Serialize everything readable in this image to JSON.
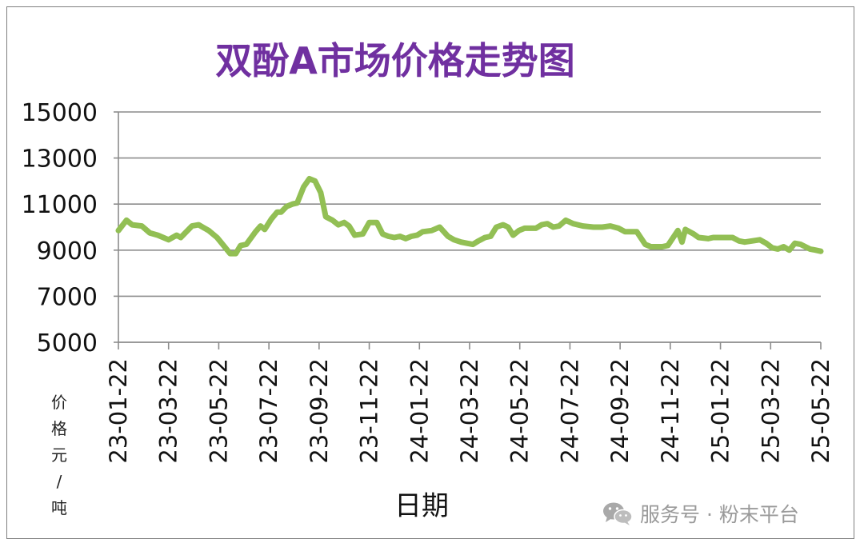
{
  "chart_data": {
    "type": "line",
    "title": "双酚A市场价格走势图",
    "xlabel": "日期",
    "ylabel": "价格元/吨",
    "ylim": [
      5000,
      15000
    ],
    "yticks": [
      5000,
      7000,
      9000,
      11000,
      13000,
      15000
    ],
    "ytick_labels": [
      "5000",
      "7000",
      "9000",
      "11000",
      "13000",
      "15000"
    ],
    "xticks": [
      "23-01-22",
      "23-03-22",
      "23-05-22",
      "23-07-22",
      "23-09-22",
      "23-11-22",
      "24-01-22",
      "24-03-22",
      "24-05-22",
      "24-07-22",
      "24-09-22",
      "24-11-22",
      "25-01-22",
      "25-03-22",
      "25-05-22"
    ],
    "grid": true,
    "legend": "none",
    "series": [
      {
        "color": "#92bf54",
        "points": [
          [
            "2023-01-22",
            9850
          ],
          [
            "2023-02-01",
            10300
          ],
          [
            "2023-02-08",
            10100
          ],
          [
            "2023-02-20",
            10050
          ],
          [
            "2023-03-01",
            9750
          ],
          [
            "2023-03-10",
            9650
          ],
          [
            "2023-03-22",
            9450
          ],
          [
            "2023-04-01",
            9650
          ],
          [
            "2023-04-06",
            9550
          ],
          [
            "2023-04-20",
            10050
          ],
          [
            "2023-04-28",
            10100
          ],
          [
            "2023-05-10",
            9850
          ],
          [
            "2023-05-20",
            9550
          ],
          [
            "2023-05-28",
            9200
          ],
          [
            "2023-06-05",
            8850
          ],
          [
            "2023-06-12",
            8850
          ],
          [
            "2023-06-18",
            9200
          ],
          [
            "2023-06-25",
            9250
          ],
          [
            "2023-07-06",
            9800
          ],
          [
            "2023-07-12",
            10050
          ],
          [
            "2023-07-17",
            9900
          ],
          [
            "2023-07-25",
            10350
          ],
          [
            "2023-08-01",
            10650
          ],
          [
            "2023-08-06",
            10650
          ],
          [
            "2023-08-13",
            10900
          ],
          [
            "2023-08-20",
            11000
          ],
          [
            "2023-08-26",
            11050
          ],
          [
            "2023-09-03",
            11750
          ],
          [
            "2023-09-10",
            12100
          ],
          [
            "2023-09-17",
            12000
          ],
          [
            "2023-09-24",
            11500
          ],
          [
            "2023-09-30",
            10450
          ],
          [
            "2023-10-08",
            10300
          ],
          [
            "2023-10-15",
            10100
          ],
          [
            "2023-10-22",
            10200
          ],
          [
            "2023-10-28",
            10050
          ],
          [
            "2023-11-04",
            9650
          ],
          [
            "2023-11-14",
            9700
          ],
          [
            "2023-11-22",
            10200
          ],
          [
            "2023-12-01",
            10200
          ],
          [
            "2023-12-08",
            9700
          ],
          [
            "2023-12-15",
            9600
          ],
          [
            "2023-12-22",
            9550
          ],
          [
            "2023-12-29",
            9600
          ],
          [
            "2024-01-05",
            9500
          ],
          [
            "2024-01-12",
            9600
          ],
          [
            "2024-01-19",
            9650
          ],
          [
            "2024-01-26",
            9800
          ],
          [
            "2024-02-06",
            9850
          ],
          [
            "2024-02-16",
            10000
          ],
          [
            "2024-02-26",
            9600
          ],
          [
            "2024-03-04",
            9450
          ],
          [
            "2024-03-12",
            9350
          ],
          [
            "2024-03-19",
            9300
          ],
          [
            "2024-03-26",
            9250
          ],
          [
            "2024-04-02",
            9400
          ],
          [
            "2024-04-10",
            9550
          ],
          [
            "2024-04-17",
            9600
          ],
          [
            "2024-04-24",
            10000
          ],
          [
            "2024-05-02",
            10100
          ],
          [
            "2024-05-08",
            10000
          ],
          [
            "2024-05-14",
            9650
          ],
          [
            "2024-05-21",
            9850
          ],
          [
            "2024-05-28",
            9950
          ],
          [
            "2024-06-11",
            9950
          ],
          [
            "2024-06-18",
            10100
          ],
          [
            "2024-06-25",
            10150
          ],
          [
            "2024-07-02",
            10000
          ],
          [
            "2024-07-09",
            10050
          ],
          [
            "2024-07-17",
            10300
          ],
          [
            "2024-07-26",
            10150
          ],
          [
            "2024-08-07",
            10050
          ],
          [
            "2024-08-20",
            10000
          ],
          [
            "2024-08-31",
            10000
          ],
          [
            "2024-09-10",
            10050
          ],
          [
            "2024-09-20",
            9950
          ],
          [
            "2024-09-28",
            9800
          ],
          [
            "2024-10-05",
            9800
          ],
          [
            "2024-10-12",
            9800
          ],
          [
            "2024-10-22",
            9250
          ],
          [
            "2024-10-29",
            9150
          ],
          [
            "2024-11-12",
            9150
          ],
          [
            "2024-11-19",
            9200
          ],
          [
            "2024-12-01",
            9850
          ],
          [
            "2024-12-06",
            9350
          ],
          [
            "2024-12-10",
            9900
          ],
          [
            "2024-12-20",
            9700
          ],
          [
            "2024-12-26",
            9550
          ],
          [
            "2025-01-07",
            9500
          ],
          [
            "2025-01-13",
            9550
          ],
          [
            "2025-01-26",
            9550
          ],
          [
            "2025-02-06",
            9550
          ],
          [
            "2025-02-14",
            9400
          ],
          [
            "2025-02-21",
            9350
          ],
          [
            "2025-03-10",
            9450
          ],
          [
            "2025-03-17",
            9300
          ],
          [
            "2025-03-24",
            9100
          ],
          [
            "2025-03-31",
            9050
          ],
          [
            "2025-04-07",
            9150
          ],
          [
            "2025-04-14",
            9000
          ],
          [
            "2025-04-21",
            9300
          ],
          [
            "2025-04-28",
            9250
          ],
          [
            "2025-05-09",
            9050
          ],
          [
            "2025-05-16",
            9000
          ],
          [
            "2025-05-22",
            8950
          ]
        ]
      }
    ]
  },
  "watermark": {
    "text": "服务号 · 粉末平台",
    "icon": "wechat-icon"
  }
}
